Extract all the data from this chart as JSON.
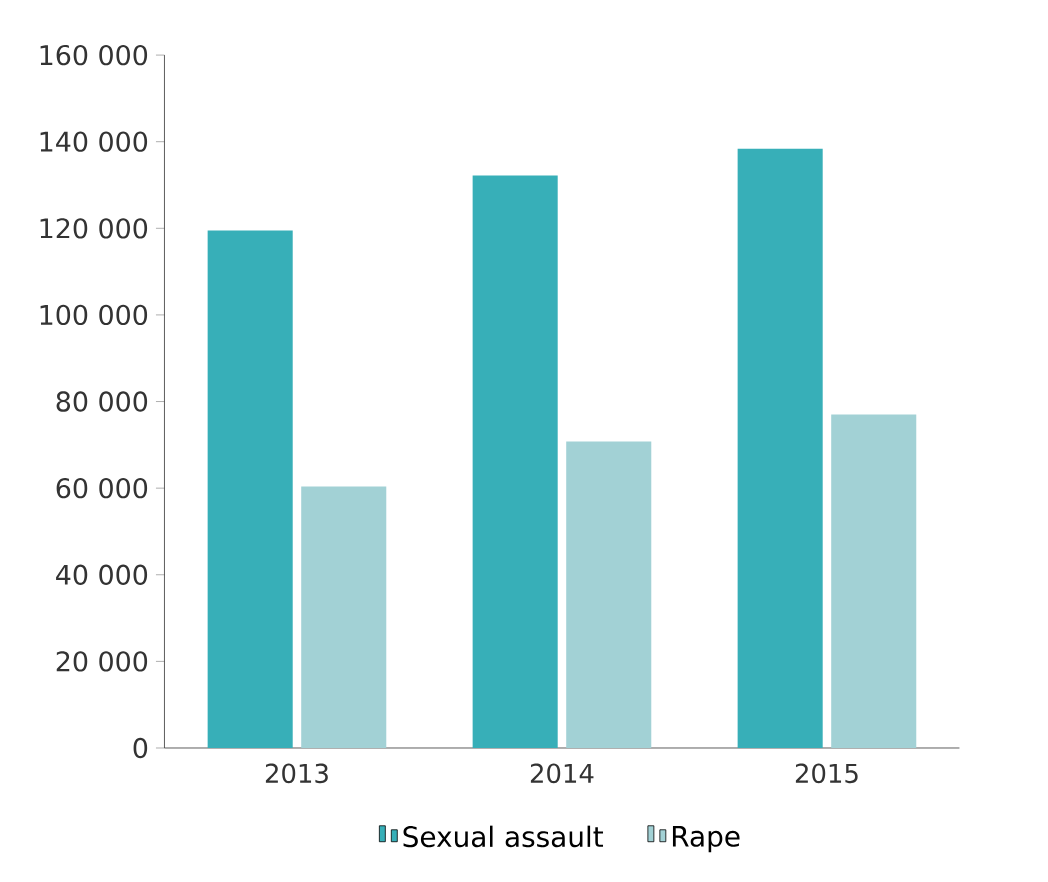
{
  "chart_data": {
    "type": "bar",
    "categories": [
      "2013",
      "2014",
      "2015"
    ],
    "series": [
      {
        "name": "Sexual assault",
        "color": "#37afb8",
        "values": [
          119500,
          132200,
          138400
        ]
      },
      {
        "name": "Rape",
        "color": "#a2d1d5",
        "values": [
          60400,
          70800,
          77000
        ]
      }
    ],
    "ylim": [
      0,
      160000
    ],
    "yticks": [
      0,
      {
        "value": 20000,
        "label": "20 000"
      },
      {
        "value": 40000,
        "label": "40 000"
      },
      {
        "value": 60000,
        "label": "60 000"
      },
      {
        "value": 80000,
        "label": "80 000"
      },
      {
        "value": 100000,
        "label": "100 000"
      },
      {
        "value": 120000,
        "label": "120 000"
      },
      {
        "value": 140000,
        "label": "140 000"
      },
      {
        "value": 160000,
        "label": "160 000"
      }
    ],
    "grid": false,
    "legend": "bottom"
  }
}
